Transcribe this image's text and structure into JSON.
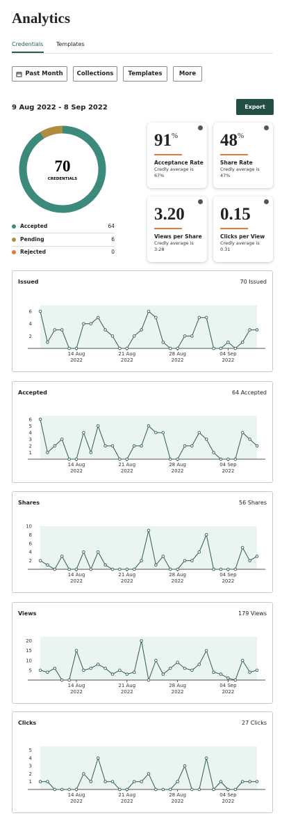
{
  "header": {
    "title": "Analytics"
  },
  "tabs": [
    "Credentials",
    "Templates"
  ],
  "filters": [
    "Past Month",
    "Collections",
    "Templates",
    "More"
  ],
  "date_range": "9 Aug 2022 - 8 Sep 2022",
  "export_button": "Export",
  "stats": [
    {
      "value": "91",
      "unit": "%",
      "label": "Acceptance Rate",
      "note": "Credly average is 67%"
    },
    {
      "value": "48",
      "unit": "%",
      "label": "Share Rate",
      "note": "Credly average is 47%"
    },
    {
      "value": "3.20",
      "label": "Views per Share",
      "note": "Credly average is 3.28"
    },
    {
      "value": "0.15",
      "label": "Clicks per View",
      "note": "Credly average is 0.31"
    }
  ],
  "chart_data": [
    {
      "type": "donut",
      "categories": [
        "Accepted",
        "Pending",
        "Rejected"
      ],
      "values": [
        64,
        6,
        0
      ],
      "colors": [
        "#3b8a7b",
        "#b08c3e",
        "#e07b3c"
      ],
      "center_value": "70",
      "center_label": "CREDENTIALS"
    },
    {
      "type": "line",
      "title": "Issued",
      "total_label": "70 Issued",
      "color": "#2f5a50",
      "x": [
        "2022-08-09",
        "2022-08-10",
        "2022-08-11",
        "2022-08-12",
        "2022-08-13",
        "2022-08-14",
        "2022-08-15",
        "2022-08-16",
        "2022-08-17",
        "2022-08-18",
        "2022-08-19",
        "2022-08-20",
        "2022-08-21",
        "2022-08-22",
        "2022-08-23",
        "2022-08-24",
        "2022-08-25",
        "2022-08-26",
        "2022-08-27",
        "2022-08-28",
        "2022-08-29",
        "2022-08-30",
        "2022-08-31",
        "2022-09-01",
        "2022-09-02",
        "2022-09-03",
        "2022-09-04",
        "2022-09-05",
        "2022-09-06",
        "2022-09-07",
        "2022-09-08"
      ],
      "values": [
        6,
        1,
        3,
        3,
        0,
        0,
        4,
        4,
        5,
        3,
        2,
        0,
        0,
        2,
        3,
        6,
        5,
        1,
        0,
        0,
        2,
        2,
        5,
        5,
        0,
        0,
        1,
        0,
        1,
        3,
        3
      ],
      "ylim": [
        0,
        7
      ],
      "yticks": [
        2,
        4,
        6
      ],
      "xticks": [
        {
          "value": "2022-08-14",
          "label": "14 Aug 2022"
        },
        {
          "value": "2022-08-21",
          "label": "21 Aug 2022"
        },
        {
          "value": "2022-08-28",
          "label": "28 Aug 2022"
        },
        {
          "value": "2022-09-04",
          "label": "04 Sep 2022"
        }
      ]
    },
    {
      "type": "line",
      "title": "Accepted",
      "total_label": "64 Accepted",
      "color": "#2f5a50",
      "x": [
        "2022-08-09",
        "2022-08-10",
        "2022-08-11",
        "2022-08-12",
        "2022-08-13",
        "2022-08-14",
        "2022-08-15",
        "2022-08-16",
        "2022-08-17",
        "2022-08-18",
        "2022-08-19",
        "2022-08-20",
        "2022-08-21",
        "2022-08-22",
        "2022-08-23",
        "2022-08-24",
        "2022-08-25",
        "2022-08-26",
        "2022-08-27",
        "2022-08-28",
        "2022-08-29",
        "2022-08-30",
        "2022-08-31",
        "2022-09-01",
        "2022-09-02",
        "2022-09-03",
        "2022-09-04",
        "2022-09-05",
        "2022-09-06",
        "2022-09-07",
        "2022-09-08"
      ],
      "values": [
        6,
        1,
        2,
        3,
        0,
        0,
        4,
        1,
        5,
        2,
        2,
        0,
        0,
        2,
        2,
        5,
        4,
        4,
        0,
        0,
        2,
        2,
        4,
        3,
        1,
        0,
        0,
        0,
        4,
        3,
        2
      ],
      "ylim": [
        0,
        6.5
      ],
      "yticks": [
        1,
        2,
        3,
        4,
        5,
        6
      ],
      "xticks": [
        {
          "value": "2022-08-14",
          "label": "14 Aug 2022"
        },
        {
          "value": "2022-08-21",
          "label": "21 Aug 2022"
        },
        {
          "value": "2022-08-28",
          "label": "28 Aug 2022"
        },
        {
          "value": "2022-09-04",
          "label": "04 Sep 2022"
        }
      ]
    },
    {
      "type": "line",
      "title": "Shares",
      "total_label": "56 Shares",
      "color": "#2f5a50",
      "x": [
        "2022-08-09",
        "2022-08-10",
        "2022-08-11",
        "2022-08-12",
        "2022-08-13",
        "2022-08-14",
        "2022-08-15",
        "2022-08-16",
        "2022-08-17",
        "2022-08-18",
        "2022-08-19",
        "2022-08-20",
        "2022-08-21",
        "2022-08-22",
        "2022-08-23",
        "2022-08-24",
        "2022-08-25",
        "2022-08-26",
        "2022-08-27",
        "2022-08-28",
        "2022-08-29",
        "2022-08-30",
        "2022-08-31",
        "2022-09-01",
        "2022-09-02",
        "2022-09-03",
        "2022-09-04",
        "2022-09-05",
        "2022-09-06",
        "2022-09-07",
        "2022-09-08"
      ],
      "values": [
        2,
        1,
        0,
        3,
        0,
        0,
        4,
        0,
        4,
        1,
        0,
        0,
        0,
        0,
        2,
        9,
        1,
        3,
        0,
        0,
        2,
        2,
        4,
        8,
        0,
        0,
        0,
        0,
        5,
        2,
        3
      ],
      "ylim": [
        0,
        10
      ],
      "yticks": [
        2,
        4,
        6,
        8,
        10
      ],
      "xticks": [
        {
          "value": "2022-08-14",
          "label": "14 Aug 2022"
        },
        {
          "value": "2022-08-21",
          "label": "21 Aug 2022"
        },
        {
          "value": "2022-08-28",
          "label": "28 Aug 2022"
        },
        {
          "value": "2022-09-04",
          "label": "04 Sep 2022"
        }
      ]
    },
    {
      "type": "line",
      "title": "Views",
      "total_label": "179 Views",
      "color": "#2f5a50",
      "x": [
        "2022-08-09",
        "2022-08-10",
        "2022-08-11",
        "2022-08-12",
        "2022-08-13",
        "2022-08-14",
        "2022-08-15",
        "2022-08-16",
        "2022-08-17",
        "2022-08-18",
        "2022-08-19",
        "2022-08-20",
        "2022-08-21",
        "2022-08-22",
        "2022-08-23",
        "2022-08-24",
        "2022-08-25",
        "2022-08-26",
        "2022-08-27",
        "2022-08-28",
        "2022-08-29",
        "2022-08-30",
        "2022-08-31",
        "2022-09-01",
        "2022-09-02",
        "2022-09-03",
        "2022-09-04",
        "2022-09-05",
        "2022-09-06",
        "2022-09-07",
        "2022-09-08"
      ],
      "values": [
        5,
        4,
        6,
        0,
        0,
        15,
        5,
        6,
        8,
        6,
        3,
        5,
        3,
        4,
        20,
        0,
        10,
        3,
        6,
        9,
        6,
        5,
        8,
        15,
        4,
        3,
        1,
        0,
        10,
        4,
        5
      ],
      "ylim": [
        0,
        22
      ],
      "yticks": [
        5,
        10,
        15,
        20
      ],
      "xticks": [
        {
          "value": "2022-08-14",
          "label": "14 Aug 2022"
        },
        {
          "value": "2022-08-21",
          "label": "21 Aug 2022"
        },
        {
          "value": "2022-08-28",
          "label": "28 Aug 2022"
        },
        {
          "value": "2022-09-04",
          "label": "04 Sep 2022"
        }
      ]
    },
    {
      "type": "line",
      "title": "Clicks",
      "total_label": "27 Clicks",
      "color": "#2f5a50",
      "x": [
        "2022-08-09",
        "2022-08-10",
        "2022-08-11",
        "2022-08-12",
        "2022-08-13",
        "2022-08-14",
        "2022-08-15",
        "2022-08-16",
        "2022-08-17",
        "2022-08-18",
        "2022-08-19",
        "2022-08-20",
        "2022-08-21",
        "2022-08-22",
        "2022-08-23",
        "2022-08-24",
        "2022-08-25",
        "2022-08-26",
        "2022-08-27",
        "2022-08-28",
        "2022-08-29",
        "2022-08-30",
        "2022-08-31",
        "2022-09-01",
        "2022-09-02",
        "2022-09-03",
        "2022-09-04",
        "2022-09-05",
        "2022-09-06",
        "2022-09-07",
        "2022-09-08"
      ],
      "values": [
        1,
        1,
        0,
        0,
        0,
        0,
        2,
        1,
        4,
        1,
        1,
        0,
        0,
        1,
        1,
        2,
        0,
        0,
        0,
        1,
        3,
        0,
        0,
        4,
        0,
        1,
        0,
        0,
        1,
        1,
        1
      ],
      "ylim": [
        0,
        5.5
      ],
      "yticks": [
        1,
        2,
        3,
        4,
        5
      ],
      "xticks": [
        {
          "value": "2022-08-14",
          "label": "14 Aug 2022"
        },
        {
          "value": "2022-08-21",
          "label": "21 Aug 2022"
        },
        {
          "value": "2022-08-28",
          "label": "28 Aug 2022"
        },
        {
          "value": "2022-09-04",
          "label": "04 Sep 2022"
        }
      ]
    }
  ]
}
